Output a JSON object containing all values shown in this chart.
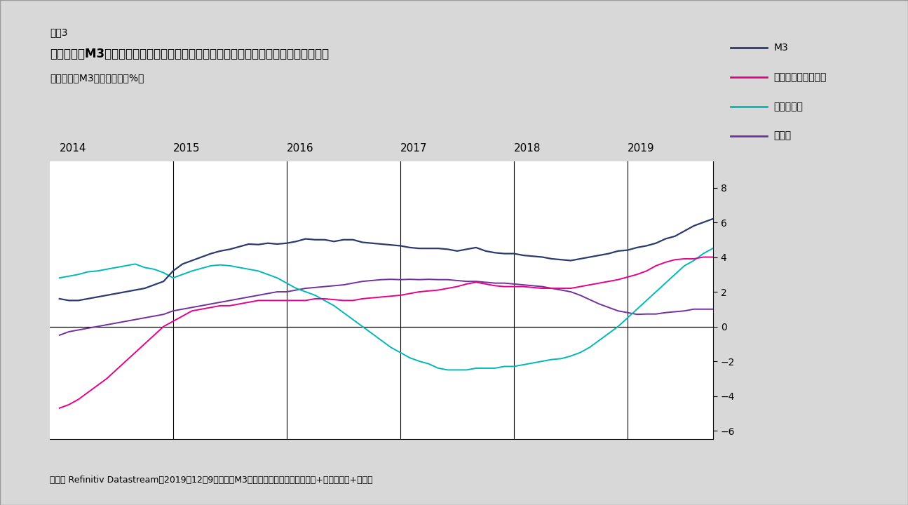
{
  "title_label": "図表3",
  "title_main": "ユーロ圏のM3の伸び率は、域内の債務ではなく、対外純資産をベースに緩やかに回復",
  "title_sub": "ユーロ圏のM3への貢献度（%）",
  "footnote": "出所： Refinitiv Datastream、2019年12月9日時点。M3＝民間セクターへの貸し出し+対外純資産+その他",
  "background_color": "#d8d8d8",
  "plot_bg_color": "#ffffff",
  "ylim": [
    -6.5,
    9.5
  ],
  "yticks": [
    -6,
    -4,
    -2,
    0,
    2,
    4,
    6,
    8
  ],
  "year_lines": [
    2015,
    2016,
    2017,
    2018,
    2019
  ],
  "colors": {
    "M3": "#2b3a6e",
    "minkan": "#e8008a",
    "taigai": "#00b8b8",
    "sonota": "#7030a0"
  },
  "legend_items": [
    "M3",
    "民間セクターの債務",
    "対外純資産",
    "その他"
  ],
  "M3": [
    1.6,
    1.5,
    1.5,
    1.6,
    1.7,
    1.8,
    1.9,
    2.0,
    2.1,
    2.2,
    2.4,
    2.6,
    3.2,
    3.6,
    3.8,
    4.0,
    4.2,
    4.35,
    4.45,
    4.6,
    4.75,
    4.72,
    4.8,
    4.75,
    4.8,
    4.9,
    5.05,
    5.0,
    5.0,
    4.9,
    5.0,
    5.0,
    4.85,
    4.8,
    4.75,
    4.7,
    4.65,
    4.55,
    4.5,
    4.5,
    4.5,
    4.45,
    4.35,
    4.45,
    4.55,
    4.35,
    4.25,
    4.2,
    4.2,
    4.1,
    4.05,
    4.0,
    3.9,
    3.85,
    3.8,
    3.9,
    4.0,
    4.1,
    4.2,
    4.35,
    4.4,
    4.55,
    4.65,
    4.8,
    5.05,
    5.2,
    5.5,
    5.8,
    6.0,
    6.2
  ],
  "minkan": [
    -4.7,
    -4.5,
    -4.2,
    -3.8,
    -3.4,
    -3.0,
    -2.5,
    -2.0,
    -1.5,
    -1.0,
    -0.5,
    0.0,
    0.3,
    0.6,
    0.9,
    1.0,
    1.1,
    1.2,
    1.2,
    1.3,
    1.4,
    1.5,
    1.5,
    1.5,
    1.5,
    1.5,
    1.5,
    1.6,
    1.6,
    1.55,
    1.5,
    1.5,
    1.6,
    1.65,
    1.7,
    1.75,
    1.8,
    1.9,
    2.0,
    2.05,
    2.1,
    2.2,
    2.3,
    2.45,
    2.55,
    2.45,
    2.35,
    2.3,
    2.3,
    2.3,
    2.25,
    2.2,
    2.2,
    2.2,
    2.2,
    2.3,
    2.4,
    2.5,
    2.6,
    2.7,
    2.85,
    3.0,
    3.2,
    3.5,
    3.7,
    3.85,
    3.9,
    3.9,
    4.0,
    4.0
  ],
  "taigai": [
    2.8,
    2.9,
    3.0,
    3.15,
    3.2,
    3.3,
    3.4,
    3.5,
    3.6,
    3.4,
    3.3,
    3.1,
    2.8,
    3.0,
    3.2,
    3.35,
    3.5,
    3.55,
    3.5,
    3.4,
    3.3,
    3.2,
    3.0,
    2.8,
    2.5,
    2.2,
    2.0,
    1.8,
    1.5,
    1.2,
    0.8,
    0.4,
    0.0,
    -0.4,
    -0.8,
    -1.2,
    -1.5,
    -1.8,
    -2.0,
    -2.15,
    -2.4,
    -2.5,
    -2.5,
    -2.5,
    -2.4,
    -2.4,
    -2.4,
    -2.3,
    -2.3,
    -2.2,
    -2.1,
    -2.0,
    -1.9,
    -1.85,
    -1.7,
    -1.5,
    -1.2,
    -0.8,
    -0.4,
    0.0,
    0.5,
    1.0,
    1.5,
    2.0,
    2.5,
    3.0,
    3.5,
    3.8,
    4.2,
    4.5
  ],
  "sonota": [
    -0.5,
    -0.3,
    -0.2,
    -0.1,
    0.0,
    0.1,
    0.2,
    0.3,
    0.4,
    0.5,
    0.6,
    0.7,
    0.9,
    1.0,
    1.1,
    1.2,
    1.3,
    1.4,
    1.5,
    1.6,
    1.7,
    1.8,
    1.9,
    2.0,
    2.0,
    2.1,
    2.2,
    2.25,
    2.3,
    2.35,
    2.4,
    2.5,
    2.6,
    2.65,
    2.7,
    2.72,
    2.7,
    2.72,
    2.7,
    2.72,
    2.7,
    2.7,
    2.65,
    2.6,
    2.6,
    2.55,
    2.5,
    2.5,
    2.45,
    2.4,
    2.35,
    2.3,
    2.2,
    2.1,
    2.0,
    1.8,
    1.55,
    1.3,
    1.1,
    0.9,
    0.8,
    0.7,
    0.72,
    0.72,
    0.8,
    0.85,
    0.9,
    1.0,
    1.0,
    1.0
  ]
}
